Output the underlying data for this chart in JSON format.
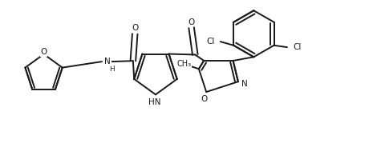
{
  "background": "#ffffff",
  "line_color": "#1a1a1a",
  "line_width": 1.4,
  "font_size": 7.5,
  "figsize": [
    4.7,
    1.89
  ],
  "dpi": 100,
  "xlim": [
    0,
    10.0
  ],
  "ylim": [
    0,
    4.0
  ]
}
